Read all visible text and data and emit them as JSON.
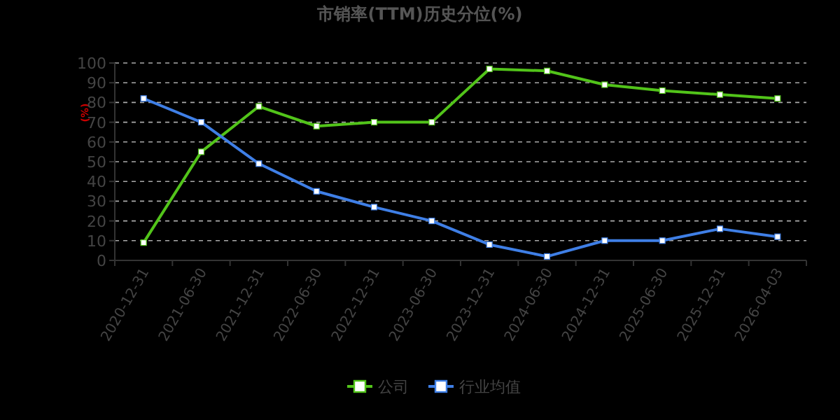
{
  "chart_data": {
    "type": "line",
    "title": "市销率(TTM)历史分位(%)",
    "ylabel": "(%)",
    "categories": [
      "2020-12-31",
      "2021-06-30",
      "2021-12-31",
      "2022-06-30",
      "2022-12-31",
      "2023-06-30",
      "2023-12-31",
      "2024-06-30",
      "2024-12-31",
      "2025-06-30",
      "2025-12-31",
      "2026-04-03"
    ],
    "series": [
      {
        "name": "公司",
        "color": "#52c41a",
        "values": [
          9,
          55,
          78,
          68,
          70,
          70,
          97,
          96,
          89,
          86,
          84,
          82
        ]
      },
      {
        "name": "行业均值",
        "color": "#3f7fe6",
        "values": [
          82,
          70,
          49,
          35,
          27,
          20,
          8,
          2,
          10,
          10,
          16,
          12
        ]
      }
    ],
    "ylim": [
      0,
      100
    ],
    "yticks": [
      0,
      10,
      20,
      30,
      40,
      50,
      60,
      70,
      80,
      90,
      100
    ],
    "grid": "y",
    "legend": "bottom",
    "marker": "square",
    "line_style": "solid"
  }
}
